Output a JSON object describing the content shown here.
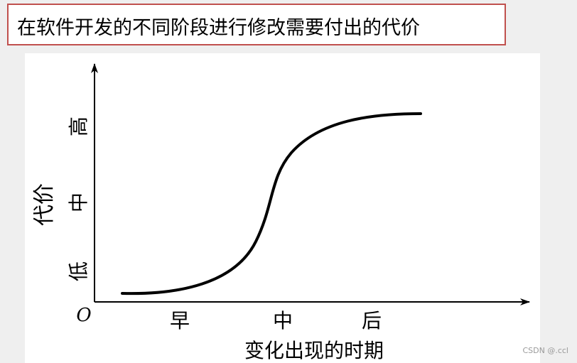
{
  "header": {
    "title": "在软件开发的不同阶段进行修改需要付出的代价"
  },
  "diagram": {
    "y_axis_title": "代价",
    "y_levels": [
      "低",
      "中",
      "高"
    ],
    "origin": "O",
    "x_levels": [
      "早",
      "中",
      "后"
    ],
    "x_axis_title": "变化出现的时期"
  },
  "watermark": "CSDN @.ccl"
}
